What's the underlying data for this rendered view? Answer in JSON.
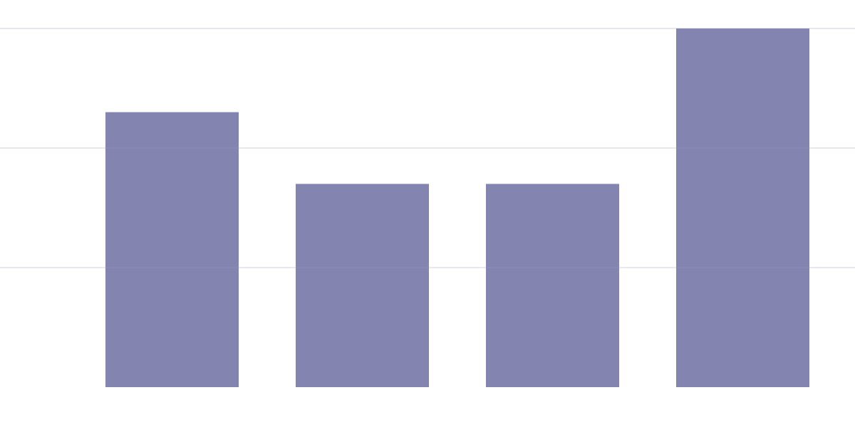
{
  "chart_data": {
    "type": "bar",
    "categories": [
      "",
      "",
      "",
      ""
    ],
    "values": [
      2.3,
      1.7,
      1.7,
      3.0
    ],
    "ylim": [
      0,
      3.0
    ],
    "grid": true,
    "gridlines": [
      1,
      2,
      3
    ],
    "bar_color": "#8384b0",
    "grid_color": "#9c9dc2",
    "background": "#ffffff"
  }
}
